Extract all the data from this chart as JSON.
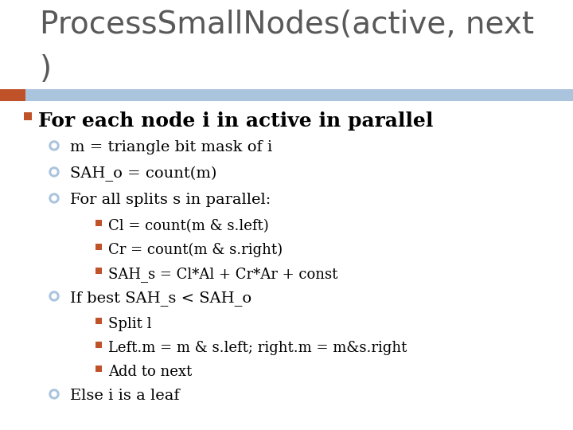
{
  "title_line1": "ProcessSmallNodes(active, next",
  "title_line2": ")",
  "title_fontsize": 28,
  "title_color": "#595959",
  "bg_color": "#ffffff",
  "header_bar_color": "#aac4dd",
  "header_bar_left_color": "#c0522a",
  "bullet1": "For each node i in active in parallel",
  "bullet1_fontsize": 18,
  "sub_bullets": [
    "m = triangle bit mask of i",
    "SAH_o = count(m)",
    "For all splits s in parallel:"
  ],
  "sub_sub_bullets": [
    "Cl = count(m & s.left)",
    "Cr = count(m & s.right)",
    "SAH_s = Cl*Al + Cr*Ar + const"
  ],
  "sub_bullets2": "If best SAH_s < SAH_o",
  "sub_sub_bullets2": [
    "Split l",
    "Left.m = m & s.left; right.m = m&s.right",
    "Add to next"
  ],
  "sub_bullets3": "Else i is a leaf",
  "square_bullet_color": "#c0522a",
  "circle_bullet_color": "#aac4dd",
  "text_color": "#000000",
  "fs_l1": 18,
  "fs_l2": 14,
  "fs_l3": 13
}
